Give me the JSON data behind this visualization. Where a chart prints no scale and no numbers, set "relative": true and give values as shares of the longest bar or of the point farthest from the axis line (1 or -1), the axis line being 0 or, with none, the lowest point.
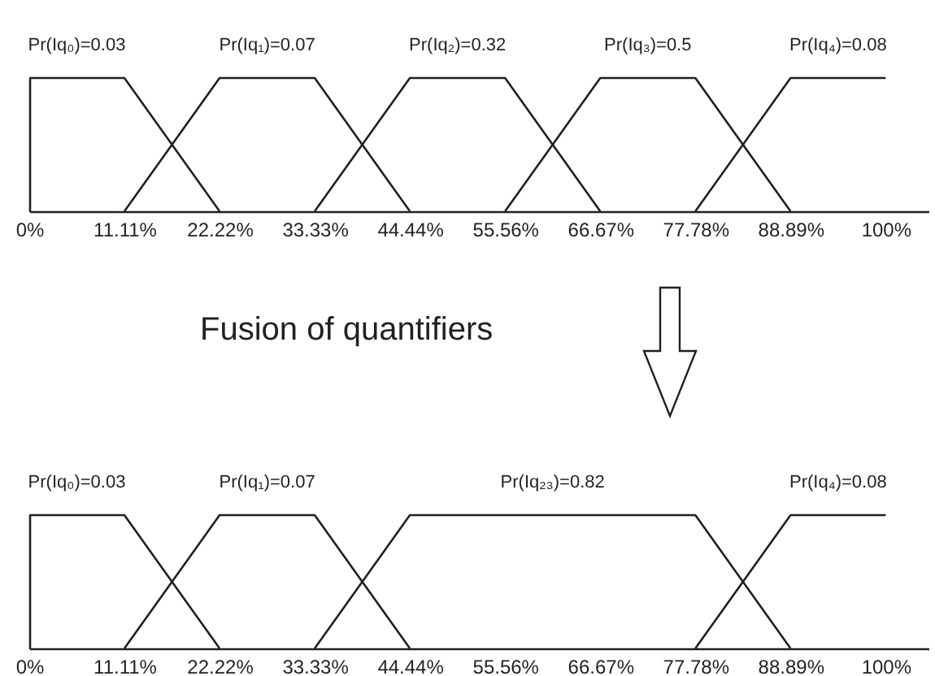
{
  "chart_data": [
    {
      "type": "line",
      "relative": true,
      "grid": false,
      "legend": false,
      "xlim": [
        0,
        105
      ],
      "xticks": [
        {
          "value": 0,
          "label": "0%"
        },
        {
          "value": 11.11,
          "label": "11.11%"
        },
        {
          "value": 22.22,
          "label": "22.22%"
        },
        {
          "value": 33.33,
          "label": "33.33%"
        },
        {
          "value": 44.44,
          "label": "44.44%"
        },
        {
          "value": 55.56,
          "label": "55.56%"
        },
        {
          "value": 66.67,
          "label": "66.67%"
        },
        {
          "value": 77.78,
          "label": "77.78%"
        },
        {
          "value": 88.89,
          "label": "88.89%"
        },
        {
          "value": 100,
          "label": "100%"
        }
      ],
      "series": [
        {
          "name": "Pr(Iq₀)=0.03",
          "color": "#231f20",
          "x": [
            0,
            11.11,
            22.22
          ],
          "values": [
            1,
            1,
            0
          ]
        },
        {
          "name": "Pr(Iq₁)=0.07",
          "color": "#231f20",
          "x": [
            11.11,
            22.22,
            33.33,
            44.44
          ],
          "values": [
            0,
            1,
            1,
            0
          ]
        },
        {
          "name": "Pr(Iq₂)=0.32",
          "color": "#231f20",
          "x": [
            33.33,
            44.44,
            55.56,
            66.67
          ],
          "values": [
            0,
            1,
            1,
            0
          ]
        },
        {
          "name": "Pr(Iq₃)=0.5",
          "color": "#231f20",
          "x": [
            55.56,
            66.67,
            77.78,
            88.89
          ],
          "values": [
            0,
            1,
            1,
            0
          ]
        },
        {
          "name": "Pr(Iq₄)=0.08",
          "color": "#231f20",
          "x": [
            77.78,
            88.89,
            100
          ],
          "values": [
            0,
            1,
            1
          ]
        }
      ]
    },
    {
      "type": "line",
      "title": "Fusion of quantifiers",
      "relative": true,
      "grid": false,
      "legend": false,
      "xlim": [
        0,
        105
      ],
      "xticks": [
        {
          "value": 0,
          "label": "0%"
        },
        {
          "value": 11.11,
          "label": "11.11%"
        },
        {
          "value": 22.22,
          "label": "22.22%"
        },
        {
          "value": 33.33,
          "label": "33.33%"
        },
        {
          "value": 44.44,
          "label": "44.44%"
        },
        {
          "value": 55.56,
          "label": "55.56%"
        },
        {
          "value": 66.67,
          "label": "66.67%"
        },
        {
          "value": 77.78,
          "label": "77.78%"
        },
        {
          "value": 88.89,
          "label": "88.89%"
        },
        {
          "value": 100,
          "label": "100%"
        }
      ],
      "series": [
        {
          "name": "Pr(Iq₀)=0.03",
          "color": "#231f20",
          "x": [
            0,
            11.11,
            22.22
          ],
          "values": [
            1,
            1,
            0
          ]
        },
        {
          "name": "Pr(Iq₁)=0.07",
          "color": "#231f20",
          "x": [
            11.11,
            22.22,
            33.33,
            44.44
          ],
          "values": [
            0,
            1,
            1,
            0
          ]
        },
        {
          "name": "Pr(Iq₂₃)=0.82",
          "color": "#231f20",
          "x": [
            33.33,
            44.44,
            77.78,
            88.89
          ],
          "values": [
            0,
            1,
            1,
            0
          ]
        },
        {
          "name": "Pr(Iq₄)=0.08",
          "color": "#231f20",
          "x": [
            77.78,
            88.89,
            100
          ],
          "values": [
            0,
            1,
            1
          ]
        }
      ]
    }
  ]
}
